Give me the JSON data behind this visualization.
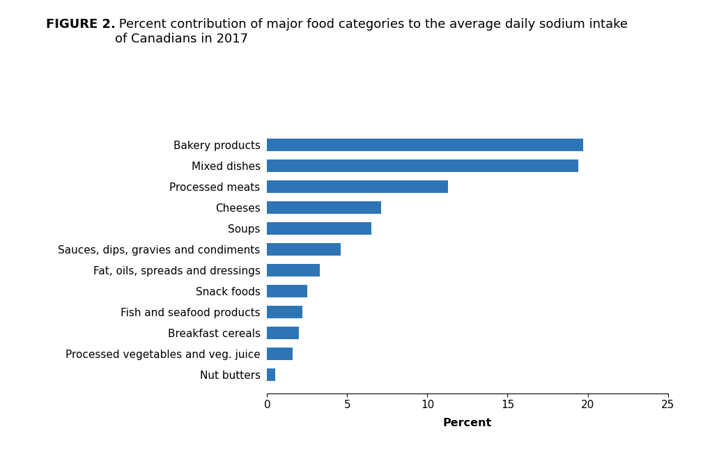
{
  "title_bold": "FIGURE 2.",
  "title_rest": " Percent contribution of major food categories to the average daily sodium intake\nof Canadians in 2017",
  "categories": [
    "Nut butters",
    "Processed vegetables and veg. juice",
    "Breakfast cereals",
    "Fish and seafood products",
    "Snack foods",
    "Fat, oils, spreads and dressings",
    "Sauces, dips, gravies and condiments",
    "Soups",
    "Cheeses",
    "Processed meats",
    "Mixed dishes",
    "Bakery products"
  ],
  "values": [
    0.5,
    1.6,
    2.0,
    2.2,
    2.5,
    3.3,
    4.6,
    6.5,
    7.1,
    11.3,
    19.4,
    19.7
  ],
  "bar_color": "#2e75b6",
  "xlabel": "Percent",
  "xlim": [
    0,
    25
  ],
  "xticks": [
    0,
    5,
    10,
    15,
    20,
    25
  ],
  "background_color": "#ffffff",
  "title_fontsize": 13,
  "label_fontsize": 11,
  "tick_fontsize": 11,
  "xlabel_fontsize": 11.5
}
